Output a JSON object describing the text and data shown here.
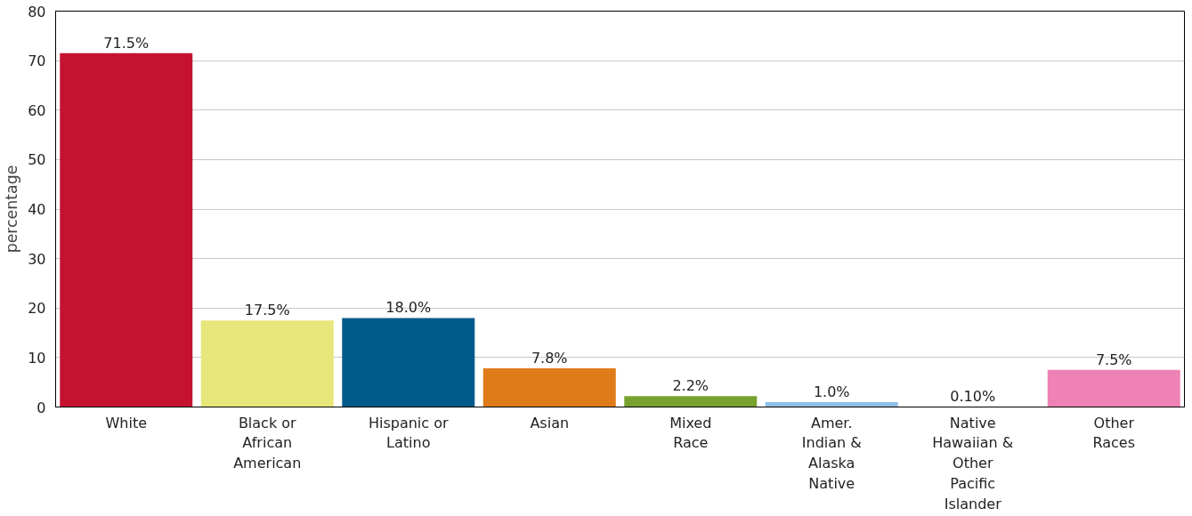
{
  "chart_data": {
    "type": "bar",
    "ylabel": "percentage",
    "categories": [
      "White",
      "Black or\nAfrican\nAmerican",
      "Hispanic or\nLatino",
      "Asian",
      "Mixed\nRace",
      "Amer.\nIndian &\nAlaska\nNative",
      "Native\nHawaiian &\nOther\nPacific\nIslander",
      "Other\nRaces"
    ],
    "values": [
      71.5,
      17.5,
      18.0,
      7.8,
      2.2,
      1.0,
      0.1,
      7.5
    ],
    "colors": [
      "#c41230",
      "#e6e67a",
      "#005b8c",
      "#e07b1a",
      "#78a22f",
      "#8dbfe6",
      "#9b59b6",
      "#ee82b4"
    ],
    "value_labels": [
      "71.5%",
      "17.5%",
      "18.0%",
      "7.8%",
      "2.2%",
      "1.0%",
      "0.10%",
      "7.5%"
    ],
    "ylim": [
      0,
      80
    ],
    "yticks": [
      0,
      10,
      20,
      30,
      40,
      50,
      60,
      70,
      80
    ],
    "grid": "y"
  }
}
